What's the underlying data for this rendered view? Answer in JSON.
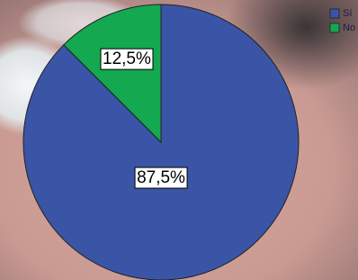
{
  "chart_data": {
    "type": "pie",
    "categories": [
      "Sí",
      "No"
    ],
    "values": [
      87.5,
      12.5
    ],
    "value_labels": [
      "87,5%",
      "12,5%"
    ],
    "colors": [
      "#3a55a6",
      "#14a850"
    ],
    "legend": "top-right"
  }
}
